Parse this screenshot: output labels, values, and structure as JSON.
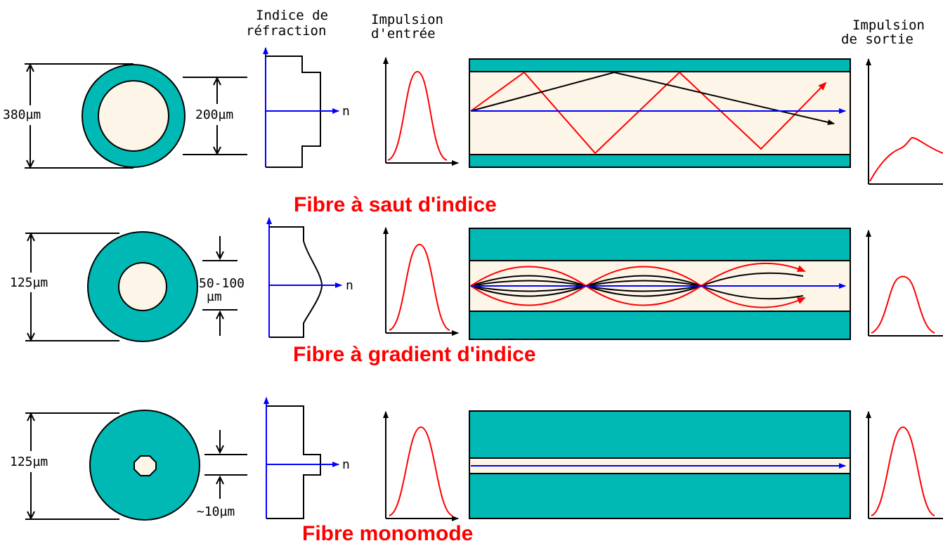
{
  "headers": {
    "refraction": [
      "Indice de",
      "réfraction"
    ],
    "input_pulse": [
      "Impulsion",
      "d'entrée"
    ],
    "output_pulse": [
      "Impulsion",
      "de sortie"
    ]
  },
  "colors": {
    "cladding": "#00b8b4",
    "core": "#fdf5e8",
    "red_ray": "#ff0000",
    "axis_blue": "#0000ff",
    "line": "#000000"
  },
  "rows": [
    {
      "id": "step-index",
      "title": "Fibre à saut d'indice",
      "outer_diameter": "380µm",
      "core_diameter": "200µm",
      "axis_label": "n"
    },
    {
      "id": "graded-index",
      "title": "Fibre à gradient d'indice",
      "outer_diameter": "125µm",
      "core_diameter_line1": "50-100",
      "core_diameter_line2": "µm",
      "axis_label": "n"
    },
    {
      "id": "single-mode",
      "title": "Fibre monomode",
      "outer_diameter": "125µm",
      "core_diameter": "~10µm",
      "axis_label": "n"
    }
  ]
}
